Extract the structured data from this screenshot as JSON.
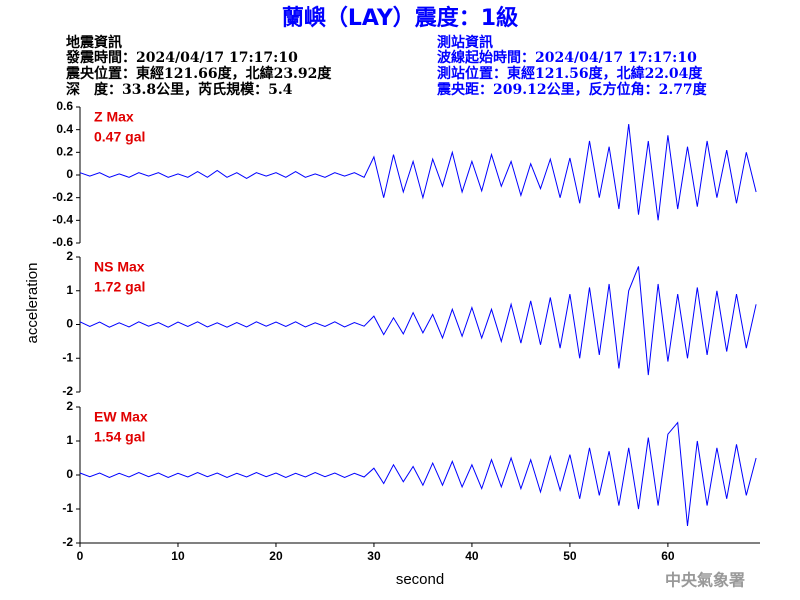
{
  "header": {
    "title": "蘭嶼（LAY）震度：1級",
    "left": [
      "地震資訊",
      "發震時間：2024/04/17 17:17:10",
      "震央位置：東經121.66度，北緯23.92度",
      "深　度：33.8公里，芮氏規模：5.4"
    ],
    "right": [
      "測站資訊",
      "波線起始時間：2024/04/17 17:17:10",
      "測站位置：東經121.56度，北緯22.04度",
      "震央距：209.12公里，反方位角：2.77度"
    ],
    "y_label": "acceleration",
    "footer": "中央氣象署"
  },
  "chart_data": [
    {
      "type": "line",
      "label": "Z Max",
      "max": "0.47 gal",
      "color": "#0000ff",
      "xlim": [
        0,
        69.4
      ],
      "ylim": [
        -0.6,
        0.6
      ],
      "yticks": [
        0.6,
        0.4,
        0.2,
        0,
        -0.2,
        -0.4,
        -0.6
      ],
      "x": [
        0,
        1,
        2,
        3,
        4,
        5,
        6,
        7,
        8,
        9,
        10,
        11,
        12,
        13,
        14,
        15,
        16,
        17,
        18,
        19,
        20,
        21,
        22,
        23,
        24,
        25,
        26,
        27,
        28,
        29,
        30,
        31,
        32,
        33,
        34,
        35,
        36,
        37,
        38,
        39,
        40,
        41,
        42,
        43,
        44,
        45,
        46,
        47,
        48,
        49,
        50,
        51,
        52,
        53,
        54,
        55,
        56,
        57,
        58,
        59,
        60,
        61,
        62,
        63,
        64,
        65,
        66,
        67,
        68,
        69
      ],
      "values": [
        0.02,
        -0.01,
        0.02,
        -0.02,
        0.01,
        -0.02,
        0.02,
        -0.01,
        0.02,
        -0.02,
        0.01,
        -0.02,
        0.03,
        -0.02,
        0.04,
        -0.02,
        0.02,
        -0.03,
        0.02,
        -0.01,
        0.02,
        -0.02,
        0.03,
        -0.02,
        0.01,
        -0.02,
        0.02,
        -0.01,
        0.02,
        -0.02,
        0.16,
        -0.2,
        0.18,
        -0.15,
        0.12,
        -0.2,
        0.14,
        -0.1,
        0.2,
        -0.15,
        0.12,
        -0.14,
        0.18,
        -0.1,
        0.12,
        -0.18,
        0.1,
        -0.12,
        0.14,
        -0.2,
        0.15,
        -0.25,
        0.3,
        -0.2,
        0.25,
        -0.3,
        0.45,
        -0.35,
        0.3,
        -0.4,
        0.35,
        -0.3,
        0.25,
        -0.28,
        0.3,
        -0.2,
        0.22,
        -0.25,
        0.2,
        -0.15
      ]
    },
    {
      "type": "line",
      "label": "NS Max",
      "max": "1.72 gal",
      "color": "#0000ff",
      "xlim": [
        0,
        69.4
      ],
      "ylim": [
        -2,
        2
      ],
      "yticks": [
        2,
        1,
        0,
        -1,
        -2
      ],
      "x": [
        0,
        1,
        2,
        3,
        4,
        5,
        6,
        7,
        8,
        9,
        10,
        11,
        12,
        13,
        14,
        15,
        16,
        17,
        18,
        19,
        20,
        21,
        22,
        23,
        24,
        25,
        26,
        27,
        28,
        29,
        30,
        31,
        32,
        33,
        34,
        35,
        36,
        37,
        38,
        39,
        40,
        41,
        42,
        43,
        44,
        45,
        46,
        47,
        48,
        49,
        50,
        51,
        52,
        53,
        54,
        55,
        56,
        57,
        58,
        59,
        60,
        61,
        62,
        63,
        64,
        65,
        66,
        67,
        68,
        69
      ],
      "values": [
        0.08,
        -0.06,
        0.07,
        -0.08,
        0.05,
        -0.07,
        0.08,
        -0.05,
        0.06,
        -0.08,
        0.07,
        -0.06,
        0.08,
        -0.07,
        0.05,
        -0.08,
        0.06,
        -0.07,
        0.08,
        -0.05,
        0.07,
        -0.06,
        0.08,
        -0.07,
        0.05,
        -0.06,
        0.08,
        -0.07,
        0.06,
        -0.05,
        0.25,
        -0.3,
        0.2,
        -0.28,
        0.35,
        -0.25,
        0.3,
        -0.4,
        0.45,
        -0.35,
        0.5,
        -0.4,
        0.45,
        -0.5,
        0.6,
        -0.55,
        0.7,
        -0.6,
        0.8,
        -0.7,
        0.9,
        -1.0,
        1.1,
        -0.9,
        1.2,
        -1.3,
        1.0,
        1.72,
        -1.5,
        1.2,
        -1.1,
        0.9,
        -1.0,
        1.1,
        -0.9,
        1.0,
        -0.8,
        0.9,
        -0.7,
        0.6
      ]
    },
    {
      "type": "line",
      "label": "EW Max",
      "max": "1.54 gal",
      "color": "#0000ff",
      "x_label": "second",
      "xlim": [
        0,
        69.4
      ],
      "xticks": [
        0,
        10,
        20,
        30,
        40,
        50,
        60
      ],
      "ylim": [
        -2,
        2
      ],
      "yticks": [
        2,
        1,
        0,
        -1,
        -2
      ],
      "x": [
        0,
        1,
        2,
        3,
        4,
        5,
        6,
        7,
        8,
        9,
        10,
        11,
        12,
        13,
        14,
        15,
        16,
        17,
        18,
        19,
        20,
        21,
        22,
        23,
        24,
        25,
        26,
        27,
        28,
        29,
        30,
        31,
        32,
        33,
        34,
        35,
        36,
        37,
        38,
        39,
        40,
        41,
        42,
        43,
        44,
        45,
        46,
        47,
        48,
        49,
        50,
        51,
        52,
        53,
        54,
        55,
        56,
        57,
        58,
        59,
        60,
        61,
        62,
        63,
        64,
        65,
        66,
        67,
        68,
        69
      ],
      "values": [
        0.06,
        -0.05,
        0.06,
        -0.07,
        0.05,
        -0.06,
        0.07,
        -0.05,
        0.06,
        -0.07,
        0.05,
        -0.06,
        0.07,
        -0.05,
        0.06,
        -0.07,
        0.05,
        -0.06,
        0.07,
        -0.05,
        0.06,
        -0.07,
        0.05,
        -0.06,
        0.07,
        -0.05,
        0.06,
        -0.07,
        0.05,
        -0.06,
        0.2,
        -0.25,
        0.3,
        -0.2,
        0.25,
        -0.3,
        0.35,
        -0.3,
        0.4,
        -0.35,
        0.3,
        -0.4,
        0.45,
        -0.35,
        0.5,
        -0.4,
        0.45,
        -0.5,
        0.55,
        -0.45,
        0.6,
        -0.7,
        0.8,
        -0.6,
        0.7,
        -0.9,
        0.8,
        -1.0,
        1.1,
        -0.9,
        1.2,
        1.54,
        -1.5,
        1.0,
        -0.9,
        0.8,
        -0.7,
        0.9,
        -0.6,
        0.5
      ]
    }
  ]
}
